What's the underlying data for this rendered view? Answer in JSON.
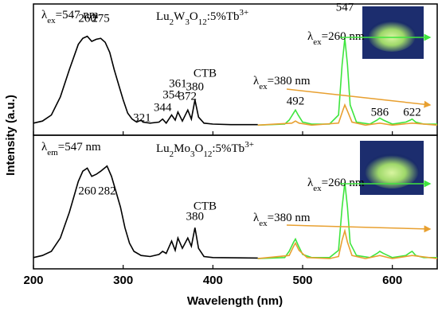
{
  "chart_data": [
    {
      "type": "line",
      "formula": "Lu2W3O12:5%Tb3+",
      "band_label": "CTB",
      "y_label": "Intensity (a.u.)",
      "xlim": [
        200,
        650
      ],
      "ylim": [
        -0.1,
        1.2
      ],
      "peak_labels": [
        260,
        275,
        321,
        344,
        354,
        361,
        372,
        380,
        492,
        547,
        586,
        622
      ],
      "series": [
        {
          "name": "λex=547 nm",
          "color": "#000000",
          "x": [
            200,
            210,
            220,
            230,
            240,
            250,
            255,
            260,
            265,
            270,
            275,
            280,
            285,
            290,
            295,
            300,
            305,
            310,
            315,
            320,
            322,
            330,
            340,
            344,
            348,
            354,
            358,
            361,
            366,
            372,
            376,
            380,
            384,
            390,
            400,
            420,
            450
          ],
          "values": [
            0.02,
            0.04,
            0.1,
            0.28,
            0.55,
            0.8,
            0.86,
            0.88,
            0.83,
            0.85,
            0.86,
            0.82,
            0.72,
            0.55,
            0.4,
            0.25,
            0.12,
            0.06,
            0.03,
            0.05,
            0.03,
            0.02,
            0.03,
            0.06,
            0.02,
            0.1,
            0.05,
            0.13,
            0.04,
            0.15,
            0.06,
            0.25,
            0.08,
            0.02,
            0.01,
            0.005,
            0.005
          ]
        },
        {
          "name": "λex=260 nm",
          "color": "#3ee53e",
          "x": [
            450,
            480,
            485,
            490,
            492,
            495,
            500,
            510,
            530,
            540,
            544,
            547,
            550,
            553,
            560,
            575,
            583,
            586,
            590,
            600,
            615,
            620,
            622,
            626,
            635,
            650
          ],
          "values": [
            0,
            0.01,
            0.05,
            0.12,
            0.15,
            0.1,
            0.03,
            0.01,
            0.01,
            0.1,
            0.6,
            0.86,
            0.6,
            0.2,
            0.03,
            0.01,
            0.05,
            0.07,
            0.05,
            0.01,
            0.03,
            0.05,
            0.06,
            0.03,
            0.01,
            0.01
          ]
        },
        {
          "name": "λex=380 nm",
          "color": "#e8a030",
          "x": [
            450,
            488,
            492,
            496,
            510,
            540,
            545,
            547,
            550,
            555,
            570,
            586,
            600,
            622,
            650
          ],
          "values": [
            0,
            0.02,
            0.04,
            0.02,
            0,
            0.02,
            0.15,
            0.2,
            0.14,
            0.03,
            0,
            0.02,
            0,
            0.02,
            0
          ]
        }
      ]
    },
    {
      "type": "line",
      "formula": "Lu2Mo3O12:5%Tb3+",
      "band_label": "CTB",
      "x_label": "Wavelength (nm)",
      "xlim": [
        200,
        650
      ],
      "ylim": [
        -0.1,
        1.2
      ],
      "xticks": [
        200,
        300,
        400,
        500,
        600
      ],
      "peak_labels": [
        260,
        282,
        380
      ],
      "series": [
        {
          "name": "λem=547 nm",
          "color": "#000000",
          "x": [
            200,
            210,
            220,
            230,
            240,
            250,
            255,
            260,
            265,
            270,
            275,
            282,
            287,
            292,
            297,
            302,
            307,
            312,
            320,
            330,
            340,
            344,
            348,
            354,
            358,
            361,
            366,
            372,
            376,
            380,
            384,
            390,
            400,
            450
          ],
          "values": [
            0.01,
            0.03,
            0.07,
            0.2,
            0.45,
            0.75,
            0.85,
            0.88,
            0.8,
            0.82,
            0.85,
            0.9,
            0.8,
            0.65,
            0.5,
            0.3,
            0.15,
            0.07,
            0.03,
            0.02,
            0.04,
            0.07,
            0.05,
            0.17,
            0.08,
            0.2,
            0.1,
            0.2,
            0.12,
            0.3,
            0.1,
            0.02,
            0.01,
            0.005
          ]
        },
        {
          "name": "λex=260 nm",
          "color": "#3ee53e",
          "x": [
            450,
            480,
            485,
            490,
            492,
            495,
            500,
            510,
            530,
            540,
            544,
            547,
            550,
            553,
            560,
            575,
            583,
            586,
            590,
            600,
            615,
            620,
            622,
            626,
            635,
            650
          ],
          "values": [
            0,
            0.01,
            0.07,
            0.16,
            0.19,
            0.13,
            0.04,
            0.01,
            0.01,
            0.08,
            0.5,
            0.74,
            0.5,
            0.15,
            0.03,
            0.01,
            0.05,
            0.07,
            0.05,
            0.01,
            0.03,
            0.06,
            0.07,
            0.03,
            0.01,
            0.01
          ]
        },
        {
          "name": "λex=380 nm",
          "color": "#e8a030",
          "x": [
            450,
            485,
            490,
            492,
            496,
            505,
            530,
            540,
            544,
            547,
            550,
            555,
            570,
            586,
            600,
            622,
            650
          ],
          "values": [
            0,
            0.03,
            0.12,
            0.15,
            0.08,
            0.01,
            0,
            0.02,
            0.18,
            0.27,
            0.16,
            0.03,
            0,
            0.03,
            0,
            0.03,
            0
          ]
        }
      ]
    }
  ]
}
